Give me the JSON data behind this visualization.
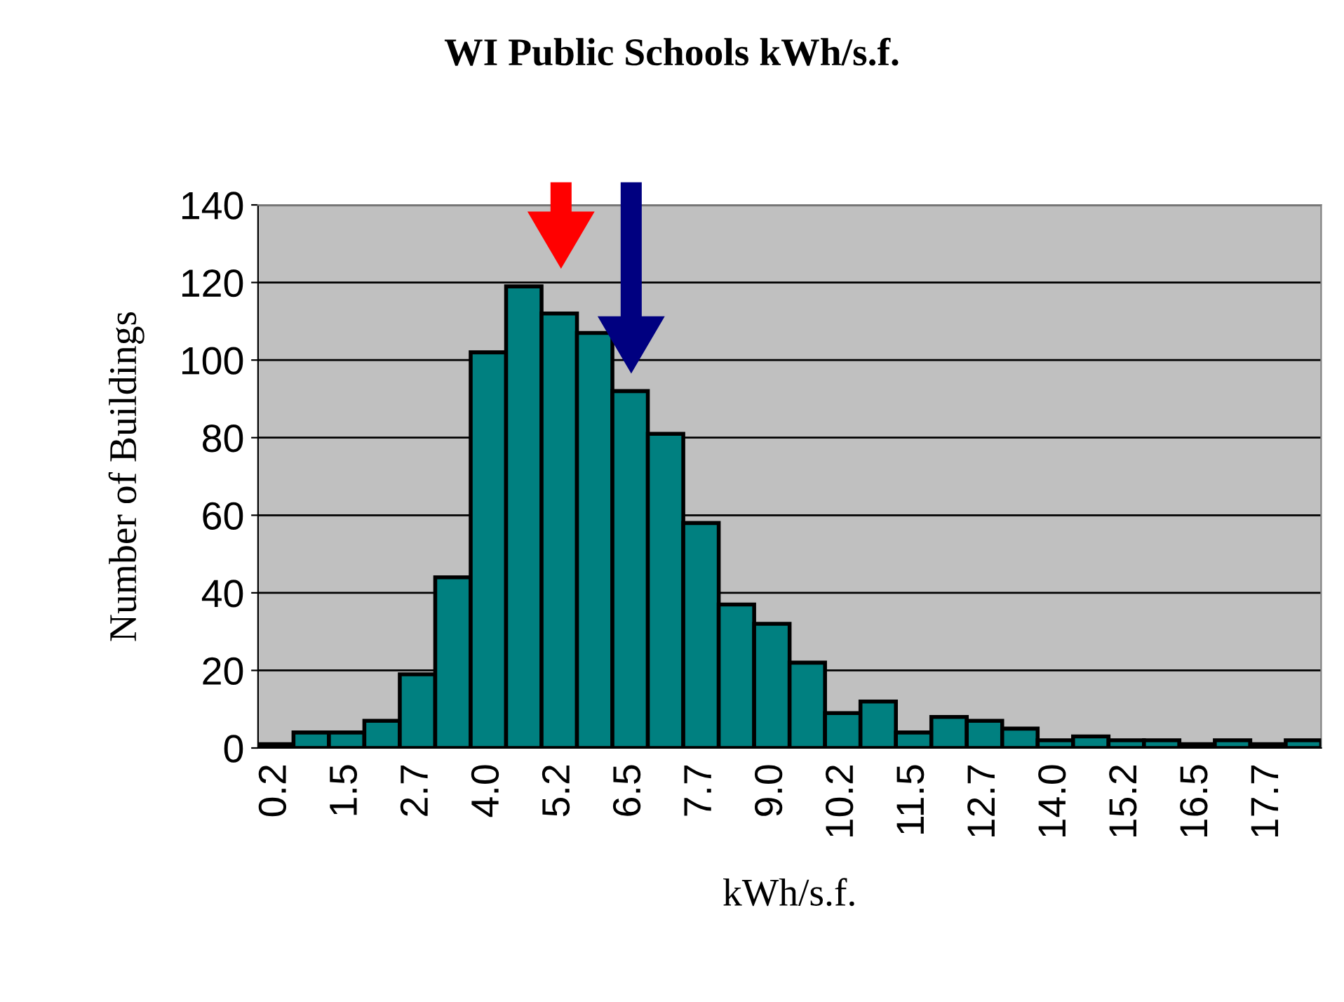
{
  "chart_data": {
    "type": "bar",
    "title": "WI Public Schools kWh/s.f.",
    "xlabel": "kWh/s.f.",
    "ylabel": "Number of Buildings",
    "categories": [
      "0.2",
      null,
      "1.5",
      null,
      "2.7",
      null,
      "4.0",
      null,
      "5.2",
      null,
      "6.5",
      null,
      "7.7",
      null,
      "9.0",
      null,
      "10.2",
      null,
      "11.5",
      null,
      "12.7",
      null,
      "14.0",
      null,
      "15.2",
      null,
      "16.5",
      null,
      "17.7",
      null
    ],
    "values": [
      1,
      4,
      4,
      7,
      19,
      44,
      102,
      119,
      112,
      107,
      92,
      81,
      58,
      37,
      32,
      22,
      9,
      12,
      4,
      8,
      7,
      5,
      2,
      3,
      2,
      2,
      1,
      2,
      1,
      2
    ],
    "color": "#008080",
    "ylim": [
      0,
      140
    ],
    "yticks": [
      0,
      20,
      40,
      60,
      80,
      100,
      120,
      140
    ],
    "grid": "y"
  }
}
